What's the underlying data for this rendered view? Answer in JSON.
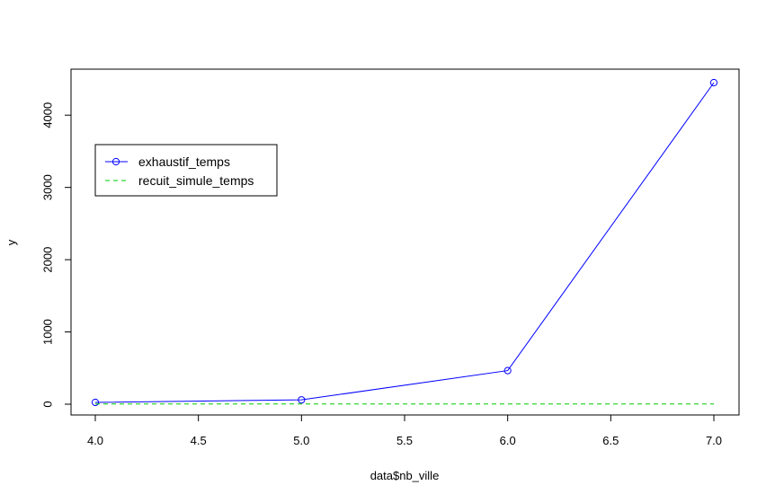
{
  "chart_data": {
    "type": "line",
    "xlabel": "data$nb_ville",
    "ylabel": "y",
    "xlim": [
      4.0,
      7.0
    ],
    "ylim": [
      0,
      4450
    ],
    "x_ticks": [
      "4.0",
      "4.5",
      "5.0",
      "5.5",
      "6.0",
      "6.5",
      "7.0"
    ],
    "y_ticks": [
      "0",
      "1000",
      "2000",
      "3000",
      "4000"
    ],
    "grid": false,
    "legend_position": "top-left",
    "series": [
      {
        "name": "exhaustif_temps",
        "color": "#0000ff",
        "line_style": "solid",
        "marker": "circle",
        "x": [
          4,
          5,
          6,
          7
        ],
        "y": [
          25,
          60,
          465,
          4450
        ]
      },
      {
        "name": "recuit_simule_temps",
        "color": "#00cc00",
        "line_style": "dashed",
        "marker": "none",
        "x": [
          4,
          5,
          6,
          7
        ],
        "y": [
          3,
          3,
          3,
          3
        ]
      }
    ]
  }
}
